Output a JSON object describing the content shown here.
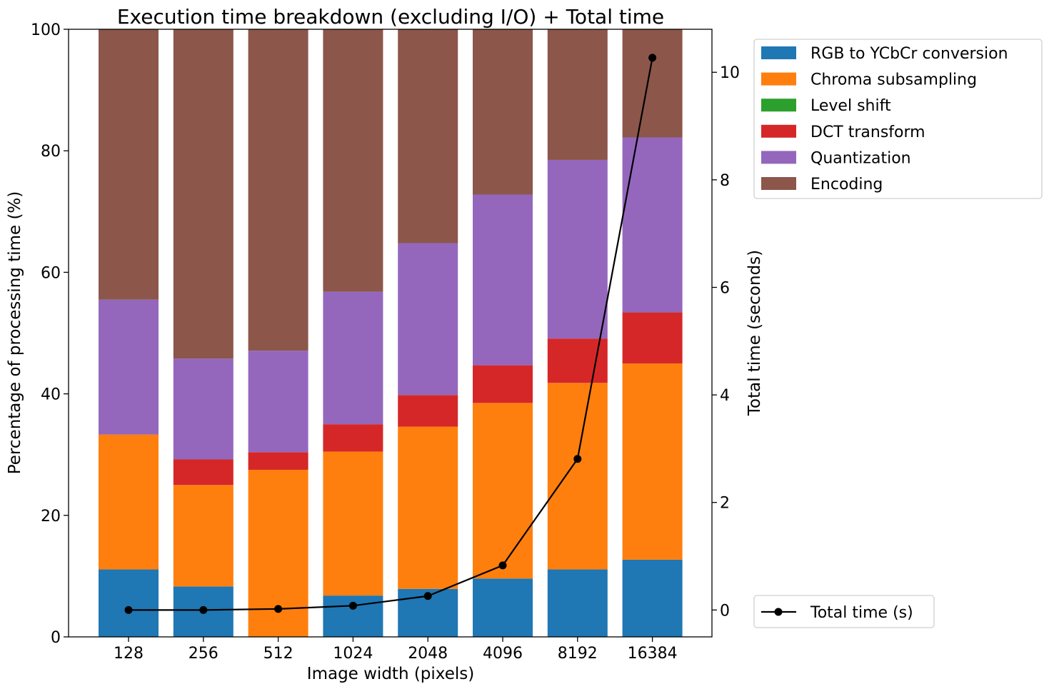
{
  "chart_data": {
    "type": "bar",
    "stacked": true,
    "title": "Execution time breakdown (excluding I/O) + Total time",
    "xlabel": "Image width (pixels)",
    "ylabel": "Percentage of processing time (%)",
    "y2label": "Total time (seconds)",
    "ylim": [
      0,
      100
    ],
    "y2lim": [
      -0.5,
      10.8
    ],
    "yticks": [
      0,
      20,
      40,
      60,
      80,
      100
    ],
    "y2ticks": [
      0,
      2,
      4,
      6,
      8,
      10
    ],
    "grid": false,
    "legend_placement": "upper right, outside plot",
    "categories": [
      "128",
      "256",
      "512",
      "1024",
      "2048",
      "4096",
      "8192",
      "16384"
    ],
    "series": [
      {
        "name": "RGB to YCbCr conversion",
        "color": "#1f77b4",
        "values": [
          11.1,
          8.3,
          0.0,
          6.8,
          7.9,
          9.6,
          11.1,
          12.7
        ]
      },
      {
        "name": "Chroma subsampling",
        "color": "#ff7f0e",
        "values": [
          22.2,
          16.7,
          27.5,
          23.7,
          26.7,
          28.9,
          30.7,
          32.3
        ]
      },
      {
        "name": "Level shift",
        "color": "#2ca02c",
        "values": [
          0.0,
          0.0,
          0.0,
          0.0,
          0.0,
          0.0,
          0.0,
          0.0
        ]
      },
      {
        "name": "DCT transform",
        "color": "#d62728",
        "values": [
          0.0,
          4.2,
          2.9,
          4.5,
          5.2,
          6.2,
          7.3,
          8.4
        ]
      },
      {
        "name": "Quantization",
        "color": "#9467bd",
        "values": [
          22.2,
          16.6,
          16.7,
          21.8,
          25.0,
          28.1,
          29.4,
          28.8
        ]
      },
      {
        "name": "Encoding",
        "color": "#8c564b",
        "values": [
          44.5,
          54.2,
          52.9,
          43.2,
          35.2,
          27.2,
          21.5,
          17.8
        ]
      }
    ],
    "line_series": {
      "name": "Total time (s)",
      "color": "#000000",
      "axis": "right",
      "values": [
        0.0,
        0.0,
        0.02,
        0.08,
        0.26,
        0.83,
        2.81,
        10.27
      ]
    }
  }
}
